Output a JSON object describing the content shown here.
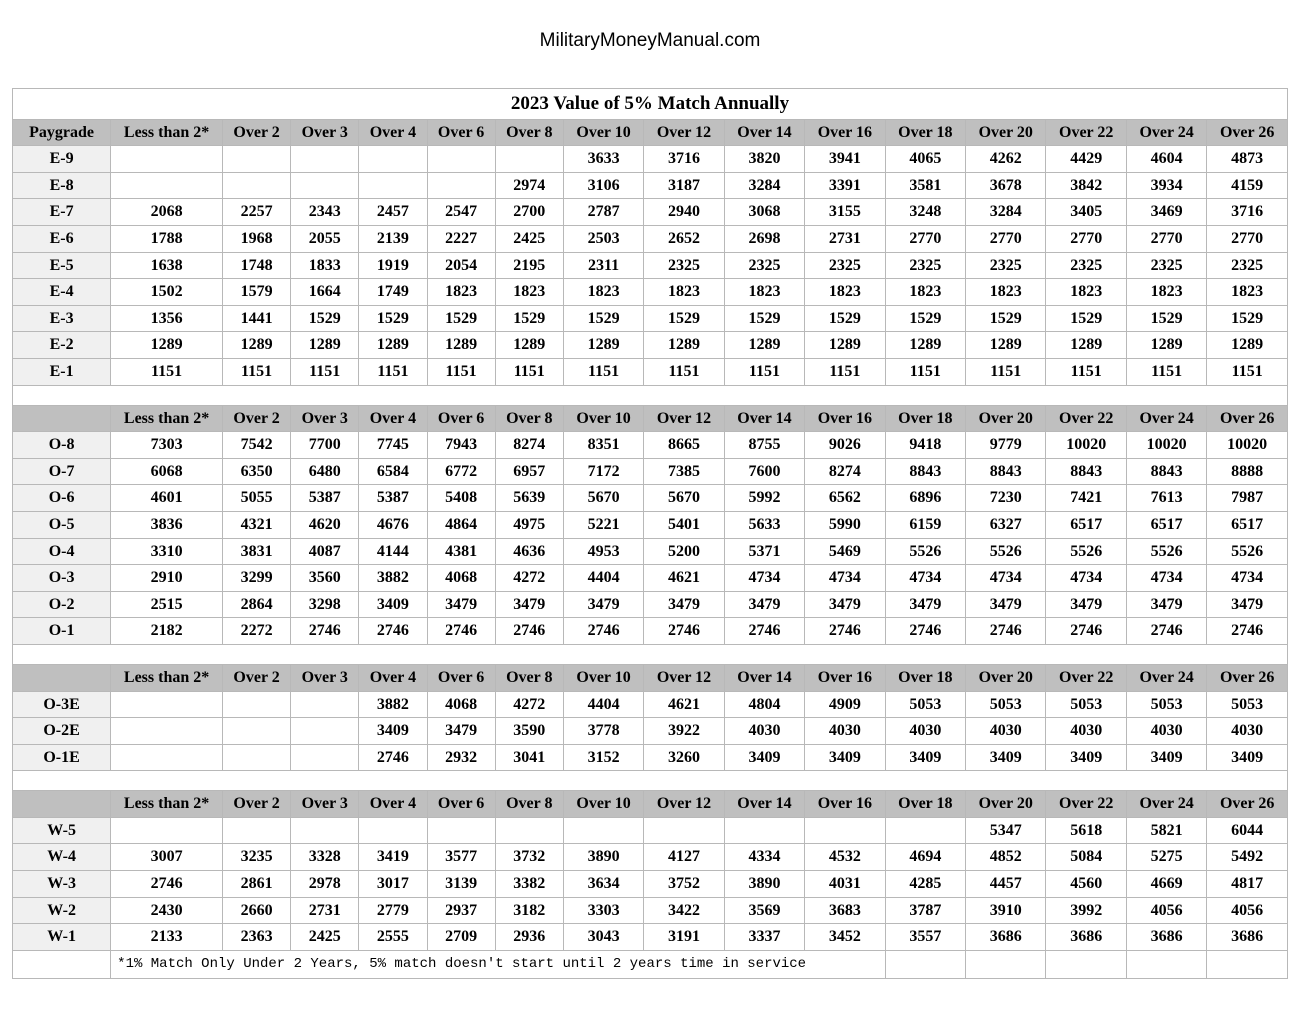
{
  "site": "MilitaryMoneyManual.com",
  "table": {
    "title": "2023 Value of 5% Match Annually",
    "columns": [
      "Paygrade",
      "Less than 2*",
      "Over 2",
      "Over 3",
      "Over 4",
      "Over 6",
      "Over 8",
      "Over 10",
      "Over 12",
      "Over 14",
      "Over 16",
      "Over 18",
      "Over 20",
      "Over 22",
      "Over 24",
      "Over 26"
    ],
    "subheader_columns": [
      "",
      "Less than 2*",
      "Over 2",
      "Over 3",
      "Over 4",
      "Over 6",
      "Over 8",
      "Over 10",
      "Over 12",
      "Over 14",
      "Over 16",
      "Over 18",
      "Over 20",
      "Over 22",
      "Over 24",
      "Over 26"
    ],
    "footnote": "*1% Match Only Under 2 Years, 5% match doesn't start until 2 years time in service",
    "sections": [
      {
        "rows": [
          [
            "E-9",
            "",
            "",
            "",
            "",
            "",
            "",
            "3633",
            "3716",
            "3820",
            "3941",
            "4065",
            "4262",
            "4429",
            "4604",
            "4873"
          ],
          [
            "E-8",
            "",
            "",
            "",
            "",
            "",
            "2974",
            "3106",
            "3187",
            "3284",
            "3391",
            "3581",
            "3678",
            "3842",
            "3934",
            "4159"
          ],
          [
            "E-7",
            "2068",
            "2257",
            "2343",
            "2457",
            "2547",
            "2700",
            "2787",
            "2940",
            "3068",
            "3155",
            "3248",
            "3284",
            "3405",
            "3469",
            "3716"
          ],
          [
            "E-6",
            "1788",
            "1968",
            "2055",
            "2139",
            "2227",
            "2425",
            "2503",
            "2652",
            "2698",
            "2731",
            "2770",
            "2770",
            "2770",
            "2770",
            "2770"
          ],
          [
            "E-5",
            "1638",
            "1748",
            "1833",
            "1919",
            "2054",
            "2195",
            "2311",
            "2325",
            "2325",
            "2325",
            "2325",
            "2325",
            "2325",
            "2325",
            "2325"
          ],
          [
            "E-4",
            "1502",
            "1579",
            "1664",
            "1749",
            "1823",
            "1823",
            "1823",
            "1823",
            "1823",
            "1823",
            "1823",
            "1823",
            "1823",
            "1823",
            "1823"
          ],
          [
            "E-3",
            "1356",
            "1441",
            "1529",
            "1529",
            "1529",
            "1529",
            "1529",
            "1529",
            "1529",
            "1529",
            "1529",
            "1529",
            "1529",
            "1529",
            "1529"
          ],
          [
            "E-2",
            "1289",
            "1289",
            "1289",
            "1289",
            "1289",
            "1289",
            "1289",
            "1289",
            "1289",
            "1289",
            "1289",
            "1289",
            "1289",
            "1289",
            "1289"
          ],
          [
            "E-1",
            "1151",
            "1151",
            "1151",
            "1151",
            "1151",
            "1151",
            "1151",
            "1151",
            "1151",
            "1151",
            "1151",
            "1151",
            "1151",
            "1151",
            "1151"
          ]
        ]
      },
      {
        "rows": [
          [
            "O-8",
            "7303",
            "7542",
            "7700",
            "7745",
            "7943",
            "8274",
            "8351",
            "8665",
            "8755",
            "9026",
            "9418",
            "9779",
            "10020",
            "10020",
            "10020"
          ],
          [
            "O-7",
            "6068",
            "6350",
            "6480",
            "6584",
            "6772",
            "6957",
            "7172",
            "7385",
            "7600",
            "8274",
            "8843",
            "8843",
            "8843",
            "8843",
            "8888"
          ],
          [
            "O-6",
            "4601",
            "5055",
            "5387",
            "5387",
            "5408",
            "5639",
            "5670",
            "5670",
            "5992",
            "6562",
            "6896",
            "7230",
            "7421",
            "7613",
            "7987"
          ],
          [
            "O-5",
            "3836",
            "4321",
            "4620",
            "4676",
            "4864",
            "4975",
            "5221",
            "5401",
            "5633",
            "5990",
            "6159",
            "6327",
            "6517",
            "6517",
            "6517"
          ],
          [
            "O-4",
            "3310",
            "3831",
            "4087",
            "4144",
            "4381",
            "4636",
            "4953",
            "5200",
            "5371",
            "5469",
            "5526",
            "5526",
            "5526",
            "5526",
            "5526"
          ],
          [
            "O-3",
            "2910",
            "3299",
            "3560",
            "3882",
            "4068",
            "4272",
            "4404",
            "4621",
            "4734",
            "4734",
            "4734",
            "4734",
            "4734",
            "4734",
            "4734"
          ],
          [
            "O-2",
            "2515",
            "2864",
            "3298",
            "3409",
            "3479",
            "3479",
            "3479",
            "3479",
            "3479",
            "3479",
            "3479",
            "3479",
            "3479",
            "3479",
            "3479"
          ],
          [
            "O-1",
            "2182",
            "2272",
            "2746",
            "2746",
            "2746",
            "2746",
            "2746",
            "2746",
            "2746",
            "2746",
            "2746",
            "2746",
            "2746",
            "2746",
            "2746"
          ]
        ]
      },
      {
        "rows": [
          [
            "O-3E",
            "",
            "",
            "",
            "3882",
            "4068",
            "4272",
            "4404",
            "4621",
            "4804",
            "4909",
            "5053",
            "5053",
            "5053",
            "5053",
            "5053"
          ],
          [
            "O-2E",
            "",
            "",
            "",
            "3409",
            "3479",
            "3590",
            "3778",
            "3922",
            "4030",
            "4030",
            "4030",
            "4030",
            "4030",
            "4030",
            "4030"
          ],
          [
            "O-1E",
            "",
            "",
            "",
            "2746",
            "2932",
            "3041",
            "3152",
            "3260",
            "3409",
            "3409",
            "3409",
            "3409",
            "3409",
            "3409",
            "3409"
          ]
        ]
      },
      {
        "rows": [
          [
            "W-5",
            "",
            "",
            "",
            "",
            "",
            "",
            "",
            "",
            "",
            "",
            "",
            "5347",
            "5618",
            "5821",
            "6044"
          ],
          [
            "W-4",
            "3007",
            "3235",
            "3328",
            "3419",
            "3577",
            "3732",
            "3890",
            "4127",
            "4334",
            "4532",
            "4694",
            "4852",
            "5084",
            "5275",
            "5492"
          ],
          [
            "W-3",
            "2746",
            "2861",
            "2978",
            "3017",
            "3139",
            "3382",
            "3634",
            "3752",
            "3890",
            "4031",
            "4285",
            "4457",
            "4560",
            "4669",
            "4817"
          ],
          [
            "W-2",
            "2430",
            "2660",
            "2731",
            "2779",
            "2937",
            "3182",
            "3303",
            "3422",
            "3569",
            "3683",
            "3787",
            "3910",
            "3992",
            "4056",
            "4056"
          ],
          [
            "W-1",
            "2133",
            "2363",
            "2425",
            "2555",
            "2709",
            "2936",
            "3043",
            "3191",
            "3337",
            "3452",
            "3557",
            "3686",
            "3686",
            "3686",
            "3686"
          ]
        ]
      }
    ]
  },
  "style": {
    "header_bg": "#bfbfbf",
    "row_label_bg": "#f0f0f0",
    "border_color": "#b8b8b8",
    "font_family": "Georgia, Times New Roman, serif",
    "footnote_font": "Courier New, monospace"
  }
}
